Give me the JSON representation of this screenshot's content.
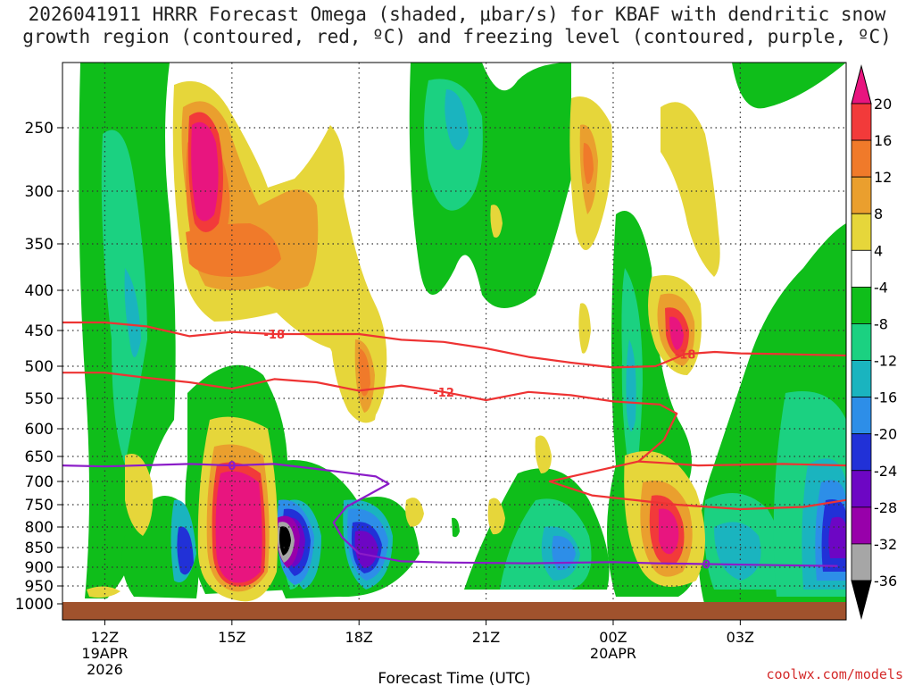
{
  "title_line1": "2026041911 HRRR Forecast Omega (shaded, μbar/s) for KBAF with dendritic snow",
  "title_line2": "growth region (contoured, red, ºC) and freezing level (contoured, purple, ºC)",
  "credit": "coolwx.com/models",
  "chart_data": {
    "type": "heatmap",
    "xlabel": "Forecast Time (UTC)",
    "ylabel": "",
    "x_ticks": [
      {
        "label": "12Z",
        "sub1": "19APR",
        "sub2": "2026",
        "hour": 0
      },
      {
        "label": "15Z",
        "sub1": "",
        "sub2": "",
        "hour": 3
      },
      {
        "label": "18Z",
        "sub1": "",
        "sub2": "",
        "hour": 6
      },
      {
        "label": "21Z",
        "sub1": "",
        "sub2": "",
        "hour": 9
      },
      {
        "label": "00Z",
        "sub1": "20APR",
        "sub2": "",
        "hour": 12
      },
      {
        "label": "03Z",
        "sub1": "",
        "sub2": "",
        "hour": 15
      }
    ],
    "xlim_hours": [
      -1,
      17.5
    ],
    "y_ticks": [
      "250",
      "300",
      "350",
      "400",
      "450",
      "500",
      "550",
      "600",
      "650",
      "700",
      "750",
      "800",
      "850",
      "900",
      "950",
      "1000"
    ],
    "ylim_hpa": [
      200,
      1000
    ],
    "grid": true,
    "colorbar": {
      "labels": [
        "20",
        "16",
        "12",
        "8",
        "4",
        "-4",
        "-8",
        "-12",
        "-16",
        "-20",
        "-24",
        "-28",
        "-32",
        "-36"
      ],
      "colors": [
        "#e8157f",
        "#f23a3a",
        "#f07a2a",
        "#ea9f2e",
        "#e6d63a",
        "#ffffff",
        "#0fbe1a",
        "#1bd181",
        "#1ab4bf",
        "#2d8ee8",
        "#2131d7",
        "#6d06c4",
        "#9800aa",
        "#a6a6a6",
        "#000000"
      ]
    },
    "contours": [
      {
        "name": "dendritic-upper",
        "label": "-18",
        "color": "#ee3333",
        "points": [
          [
            -1,
            440
          ],
          [
            0,
            440
          ],
          [
            1,
            445
          ],
          [
            2,
            458
          ],
          [
            3,
            452
          ],
          [
            4,
            455
          ],
          [
            5,
            455
          ],
          [
            6,
            455
          ],
          [
            7,
            463
          ],
          [
            8,
            466
          ],
          [
            9,
            475
          ],
          [
            10,
            487
          ],
          [
            11,
            495
          ],
          [
            12,
            502
          ],
          [
            13,
            500
          ],
          [
            13.7,
            483
          ],
          [
            14.4,
            480
          ],
          [
            15,
            482
          ],
          [
            16,
            483
          ],
          [
            17.5,
            485
          ]
        ]
      },
      {
        "name": "dendritic-lower",
        "label": "-12",
        "color": "#ee3333",
        "points": [
          [
            -1,
            510
          ],
          [
            0,
            510
          ],
          [
            1,
            518
          ],
          [
            2,
            525
          ],
          [
            3,
            535
          ],
          [
            4,
            520
          ],
          [
            5,
            525
          ],
          [
            6,
            538
          ],
          [
            7,
            530
          ],
          [
            8,
            540
          ],
          [
            9,
            553
          ],
          [
            10,
            540
          ],
          [
            11,
            545
          ],
          [
            12,
            555
          ],
          [
            13.1,
            560
          ],
          [
            13.5,
            575
          ],
          [
            13.2,
            620
          ],
          [
            12.6,
            660
          ],
          [
            13.2,
            663
          ],
          [
            14,
            668
          ],
          [
            16,
            665
          ],
          [
            17.5,
            668
          ]
        ]
      },
      {
        "name": "dendritic-lower-branch",
        "label": "",
        "color": "#ee3333",
        "points": [
          [
            12.6,
            660
          ],
          [
            10.5,
            700
          ],
          [
            11.5,
            730
          ],
          [
            13.5,
            750
          ],
          [
            15,
            760
          ],
          [
            16.5,
            755
          ],
          [
            17.5,
            740
          ]
        ]
      },
      {
        "name": "freezing-level",
        "label": "0",
        "color": "#8b1cc8",
        "points": [
          [
            -1,
            668
          ],
          [
            0,
            670
          ],
          [
            2,
            665
          ],
          [
            3,
            668
          ],
          [
            4,
            665
          ],
          [
            5,
            675
          ],
          [
            6.4,
            690
          ],
          [
            6.7,
            705
          ],
          [
            6.2,
            730
          ],
          [
            5.7,
            755
          ],
          [
            5.4,
            790
          ],
          [
            5.6,
            825
          ],
          [
            6,
            865
          ],
          [
            7,
            885
          ],
          [
            8,
            888
          ],
          [
            10,
            890
          ],
          [
            12,
            887
          ],
          [
            13,
            890
          ],
          [
            14.2,
            892
          ],
          [
            16,
            895
          ],
          [
            17.3,
            897
          ]
        ]
      }
    ],
    "ground_level_hpa": 1000
  }
}
